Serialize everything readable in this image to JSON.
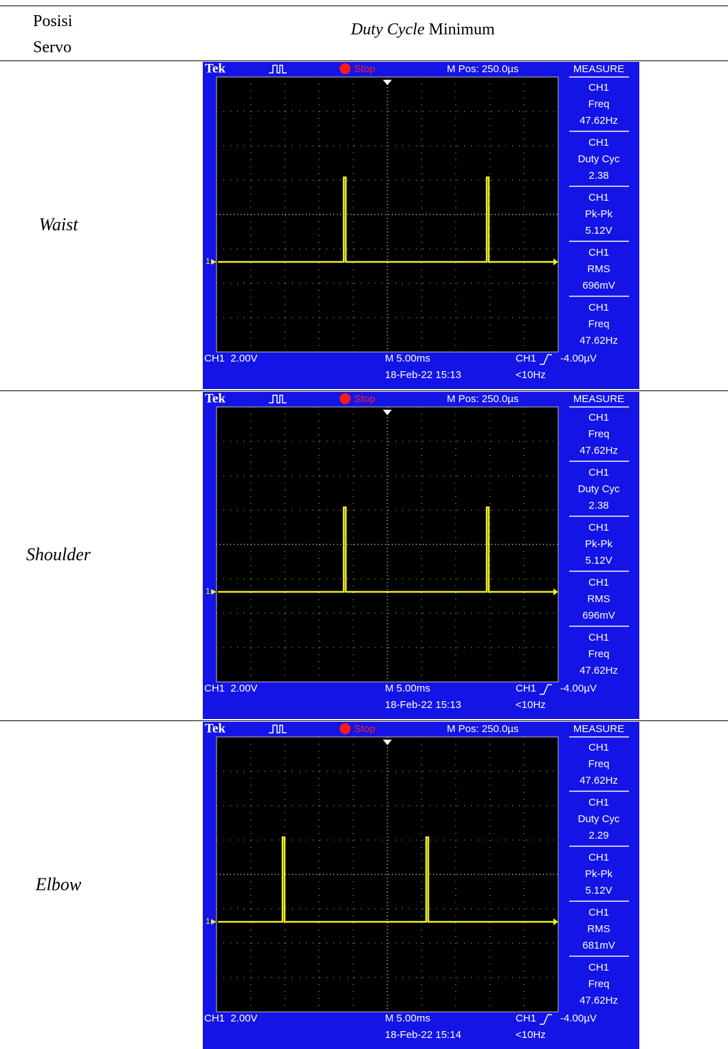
{
  "header": {
    "position": "Posisi Servo",
    "duty_italic": "Duty Cycle",
    "duty_rest": "Minimum"
  },
  "rows": [
    {
      "label": "Waist",
      "scope": {
        "brand": "Tek",
        "status": "Stop",
        "mpos": "M Pos: 250.0µs",
        "measure_title": "MEASURE",
        "measurements": [
          {
            "channel": "CH1",
            "name": "Freq",
            "value": "47.62Hz"
          },
          {
            "channel": "CH1",
            "name": "Duty Cyc",
            "value": "2.38"
          },
          {
            "channel": "CH1",
            "name": "Pk-Pk",
            "value": "5.12V"
          },
          {
            "channel": "CH1",
            "name": "RMS",
            "value": "696mV"
          },
          {
            "channel": "CH1",
            "name": "Freq",
            "value": "47.62Hz"
          }
        ],
        "marker": "1",
        "ch_scale": "CH1  2.00V",
        "timebase": "M 5.00ms",
        "date": "18-Feb-22 15:13",
        "trigger_ch": "CH1",
        "trigger_level": "-4.00µV",
        "trigger_freq": "<10Hz"
      }
    },
    {
      "label": "Shoulder",
      "scope": {
        "brand": "Tek",
        "status": "Stop",
        "mpos": "M Pos: 250.0µs",
        "measure_title": "MEASURE",
        "measurements": [
          {
            "channel": "CH1",
            "name": "Freq",
            "value": "47.62Hz"
          },
          {
            "channel": "CH1",
            "name": "Duty Cyc",
            "value": "2.38"
          },
          {
            "channel": "CH1",
            "name": "Pk-Pk",
            "value": "5.12V"
          },
          {
            "channel": "CH1",
            "name": "RMS",
            "value": "696mV"
          },
          {
            "channel": "CH1",
            "name": "Freq",
            "value": "47.62Hz"
          }
        ],
        "marker": "1",
        "ch_scale": "CH1  2.00V",
        "timebase": "M 5.00ms",
        "date": "18-Feb-22 15:13",
        "trigger_ch": "CH1",
        "trigger_level": "-4.00µV",
        "trigger_freq": "<10Hz"
      }
    },
    {
      "label": "Elbow",
      "scope": {
        "brand": "Tek",
        "status": "Stop",
        "mpos": "M Pos: 250.0µs",
        "measure_title": "MEASURE",
        "measurements": [
          {
            "channel": "CH1",
            "name": "Freq",
            "value": "47.62Hz"
          },
          {
            "channel": "CH1",
            "name": "Duty Cyc",
            "value": "2.29"
          },
          {
            "channel": "CH1",
            "name": "Pk-Pk",
            "value": "5.12V"
          },
          {
            "channel": "CH1",
            "name": "RMS",
            "value": "681mV"
          },
          {
            "channel": "CH1",
            "name": "Freq",
            "value": "47.62Hz"
          }
        ],
        "marker": "1",
        "ch_scale": "CH1  2.00V",
        "timebase": "M 5.00ms",
        "date": "18-Feb-22 15:14",
        "trigger_ch": "CH1",
        "trigger_level": "-4.00µV",
        "trigger_freq": "<10Hz"
      }
    }
  ]
}
